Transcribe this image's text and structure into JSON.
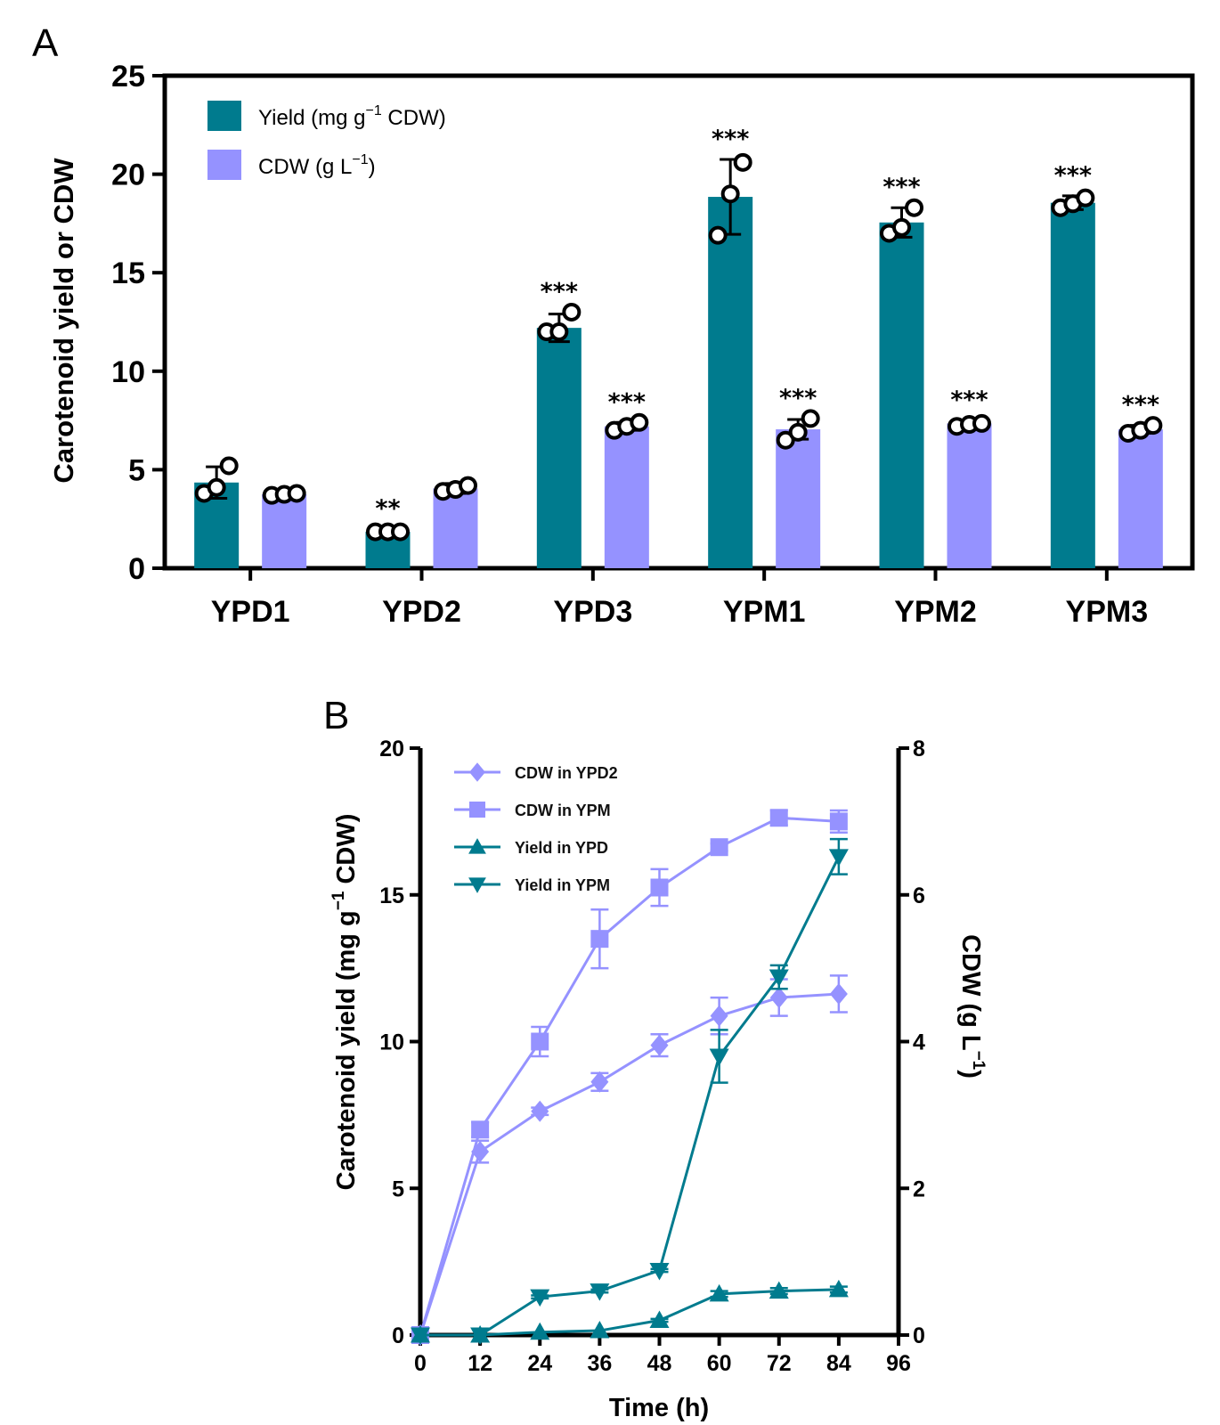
{
  "colors": {
    "yield": "#007b8e",
    "cdw": "#9592ff"
  },
  "chart_data": [
    {
      "panel": "A",
      "type": "bar",
      "ylabel": "Carotenoid yield or CDW",
      "ylim": [
        0,
        25
      ],
      "yticks": [
        "0",
        "5",
        "10",
        "15",
        "20",
        "25"
      ],
      "categories": [
        "YPD1",
        "YPD2",
        "YPD3",
        "YPM1",
        "YPM2",
        "YPM3"
      ],
      "legend": [
        {
          "label": "Yield (mg g",
          "sup": "−1",
          "tail": " CDW)"
        },
        {
          "label": "CDW (g L",
          "sup": "−1",
          "tail": ")"
        }
      ],
      "series": [
        {
          "name": "Yield (mg g−1 CDW)",
          "values": [
            4.35,
            1.85,
            12.2,
            18.85,
            17.55,
            18.55
          ],
          "errors": [
            0.8,
            0.15,
            0.7,
            1.9,
            0.75,
            0.35
          ],
          "points": [
            [
              3.8,
              4.1,
              5.2
            ],
            [
              1.85,
              1.85,
              1.85
            ],
            [
              12.0,
              12.0,
              13.0
            ],
            [
              16.9,
              19.0,
              20.6
            ],
            [
              17.0,
              17.3,
              18.3
            ],
            [
              18.3,
              18.5,
              18.8
            ]
          ],
          "sig": [
            "",
            "**",
            "***",
            "***",
            "***",
            "***"
          ]
        },
        {
          "name": "CDW (g L−1)",
          "values": [
            3.75,
            4.05,
            7.2,
            7.05,
            7.35,
            7.05
          ],
          "errors": [
            0.05,
            0.25,
            0.2,
            0.5,
            0.15,
            0.2
          ],
          "points": [
            [
              3.7,
              3.75,
              3.8
            ],
            [
              3.9,
              4.0,
              4.2
            ],
            [
              7.0,
              7.2,
              7.4
            ],
            [
              6.5,
              6.9,
              7.6
            ],
            [
              7.2,
              7.3,
              7.35
            ],
            [
              6.85,
              7.0,
              7.25
            ]
          ],
          "sig": [
            "",
            "",
            "***",
            "***",
            "***",
            "***"
          ]
        }
      ]
    },
    {
      "panel": "B",
      "type": "line",
      "xlabel": "Time (h)",
      "ylabel": "Carotenoid yield (mg g",
      "ylabel_sup": "−1",
      "ylabel_tail": " CDW)",
      "y2label": "CDW (g L",
      "y2label_sup": "−1",
      "y2label_tail": ")",
      "xlim": [
        0,
        96
      ],
      "ylim": [
        0,
        20
      ],
      "y2lim": [
        0,
        8
      ],
      "xticks": [
        "0",
        "12",
        "24",
        "36",
        "48",
        "60",
        "72",
        "84",
        "96"
      ],
      "yticks": [
        "0",
        "5",
        "10",
        "15",
        "20"
      ],
      "y2ticks": [
        "0",
        "2",
        "4",
        "6",
        "8"
      ],
      "series": [
        {
          "name": "CDW in YPD2",
          "axis": "right",
          "marker": "diamond",
          "color": "cdw",
          "x": [
            0,
            12,
            24,
            36,
            48,
            60,
            72,
            84
          ],
          "y": [
            0,
            2.5,
            3.05,
            3.45,
            3.95,
            4.35,
            4.6,
            4.65
          ],
          "err": [
            0,
            0.15,
            0.05,
            0.12,
            0.15,
            0.25,
            0.25,
            0.25
          ]
        },
        {
          "name": "CDW in YPM",
          "axis": "right",
          "marker": "square",
          "color": "cdw",
          "x": [
            0,
            12,
            24,
            36,
            48,
            60,
            72,
            84
          ],
          "y": [
            0,
            2.8,
            4.0,
            5.4,
            6.1,
            6.65,
            7.05,
            7.0
          ],
          "err": [
            0,
            0.1,
            0.2,
            0.4,
            0.25,
            0.05,
            0.1,
            0.15
          ]
        },
        {
          "name": "Yield in YPD",
          "axis": "left",
          "marker": "triangle-up",
          "color": "yield",
          "x": [
            0,
            12,
            24,
            36,
            48,
            60,
            72,
            84
          ],
          "y": [
            0,
            0,
            0.1,
            0.15,
            0.5,
            1.4,
            1.5,
            1.55
          ],
          "err": [
            0,
            0,
            0,
            0,
            0.05,
            0.1,
            0.1,
            0.1
          ]
        },
        {
          "name": "Yield in YPM",
          "axis": "left",
          "marker": "triangle-down",
          "color": "yield",
          "x": [
            0,
            12,
            24,
            36,
            48,
            60,
            72,
            84
          ],
          "y": [
            0,
            0,
            1.3,
            1.5,
            2.2,
            9.5,
            12.2,
            16.3
          ],
          "err": [
            0,
            0,
            0.05,
            0.05,
            0.05,
            0.9,
            0.4,
            0.6
          ]
        }
      ]
    }
  ]
}
